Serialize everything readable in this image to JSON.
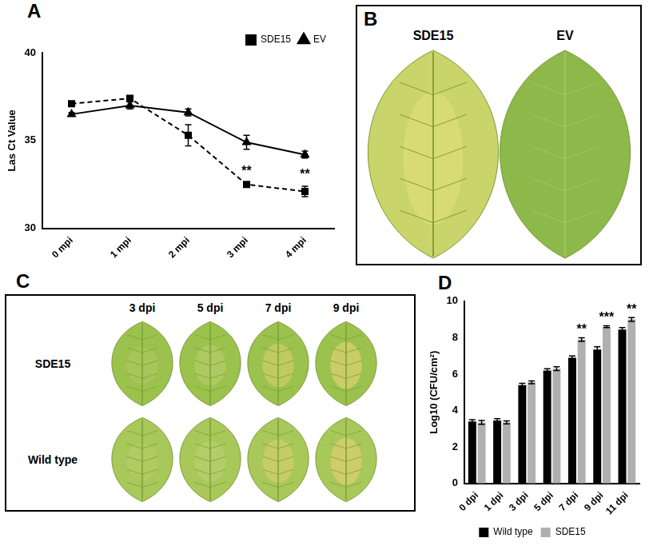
{
  "chart_data": [
    {
      "panel": "A",
      "type": "line",
      "y_label": "Las Ct Value",
      "categories": [
        "0 mpi",
        "1 mpi",
        "2 mpi",
        "3 mpi",
        "4 mpi"
      ],
      "series": [
        {
          "name": "SDE15",
          "color": "#000000",
          "marker": "square",
          "line_style": "dashed",
          "values": [
            37.1,
            37.4,
            35.3,
            32.5,
            32.1
          ],
          "errors": [
            0.1,
            0.1,
            0.6,
            0.1,
            0.3
          ]
        },
        {
          "name": "EV",
          "color": "#000000",
          "marker": "triangle",
          "line_style": "solid",
          "values": [
            36.5,
            37.0,
            36.6,
            34.9,
            34.2
          ],
          "errors": [
            0.1,
            0.2,
            0.2,
            0.4,
            0.2
          ]
        }
      ],
      "annotations": [
        {
          "x": "3 mpi",
          "series": "SDE15",
          "text": "**"
        },
        {
          "x": "4 mpi",
          "series": "SDE15",
          "text": "**"
        }
      ],
      "ylim": [
        30,
        40
      ],
      "yticks": [
        30,
        35,
        40
      ],
      "grid": false,
      "legend": "upper right"
    },
    {
      "panel": "D",
      "type": "bar",
      "y_label": "Log10 (CFU/cm²)",
      "categories": [
        "0 dpi",
        "1 dpi",
        "3 dpi",
        "5 dpi",
        "7 dpi",
        "9 dpi",
        "11 dpi"
      ],
      "series": [
        {
          "name": "Wild type",
          "color": "#000000",
          "values": [
            3.4,
            3.45,
            5.4,
            6.2,
            6.9,
            7.35,
            8.45
          ],
          "errors": [
            0.1,
            0.1,
            0.1,
            0.1,
            0.1,
            0.15,
            0.1
          ]
        },
        {
          "name": "SDE15",
          "color": "#b0b0b0",
          "values": [
            3.35,
            3.35,
            5.55,
            6.3,
            7.9,
            8.6,
            9.0
          ],
          "errors": [
            0.1,
            0.08,
            0.08,
            0.1,
            0.1,
            0.05,
            0.1
          ]
        }
      ],
      "annotations": [
        {
          "x": "7 dpi",
          "series": "SDE15",
          "text": "**"
        },
        {
          "x": "9 dpi",
          "series": "SDE15",
          "text": "***"
        },
        {
          "x": "11 dpi",
          "series": "SDE15",
          "text": "**"
        }
      ],
      "ylim": [
        0,
        10
      ],
      "yticks": [
        0,
        2,
        4,
        6,
        8,
        10
      ],
      "grid": false,
      "legend": "bottom"
    }
  ],
  "image_panels": [
    {
      "panel": "B",
      "labels": [
        "SDE15",
        "EV"
      ]
    },
    {
      "panel": "C",
      "columns": [
        "3 dpi",
        "5 dpi",
        "7 dpi",
        "9 dpi"
      ],
      "rows": [
        "SDE15",
        "Wild type"
      ]
    }
  ]
}
